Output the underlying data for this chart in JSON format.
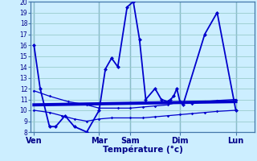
{
  "xlabel": "Température (°c)",
  "background_color": "#cceeff",
  "grid_color": "#99cccc",
  "line_color": "#0000cc",
  "sep_color": "#4477aa",
  "ylim": [
    8,
    20
  ],
  "yticks": [
    8,
    9,
    10,
    11,
    12,
    13,
    14,
    15,
    16,
    17,
    18,
    19,
    20
  ],
  "xlim": [
    0,
    36
  ],
  "day_labels": [
    "Ven",
    "Mar",
    "Sam",
    "Dim",
    "Lun"
  ],
  "day_positions": [
    0.5,
    11,
    16,
    24,
    33
  ],
  "day_sep_positions": [
    0.5,
    11,
    16,
    24,
    33
  ],
  "series1_x": [
    0.5,
    1.5,
    3,
    4,
    5.5,
    7,
    9,
    11,
    12,
    13,
    14,
    15.5,
    16.5,
    17.5,
    18.5,
    20,
    21,
    22,
    22.5,
    23,
    23.5,
    24,
    24.5,
    28,
    30,
    33
  ],
  "series1_y": [
    16,
    12,
    8.5,
    8.5,
    9.5,
    8.5,
    8,
    10,
    13.8,
    14.8,
    14,
    19.5,
    20,
    16.5,
    11,
    12,
    11,
    10.8,
    11,
    11.3,
    12,
    10.8,
    10.5,
    17,
    19,
    10
  ],
  "series2_x": [
    0.5,
    3,
    6,
    9,
    11,
    14,
    16,
    18,
    20,
    22,
    24,
    26,
    28,
    30,
    33
  ],
  "series2_y": [
    11.8,
    11.3,
    10.8,
    10.5,
    10.2,
    10.2,
    10.2,
    10.3,
    10.4,
    10.5,
    10.8,
    10.6,
    10.8,
    10.9,
    11.0
  ],
  "series3_x": [
    0.5,
    3,
    5,
    7,
    9,
    11,
    13,
    16,
    18,
    20,
    22,
    24,
    26,
    28,
    30,
    33
  ],
  "series3_y": [
    10.0,
    9.8,
    9.5,
    9.2,
    9.0,
    9.2,
    9.3,
    9.3,
    9.3,
    9.4,
    9.5,
    9.6,
    9.7,
    9.8,
    9.9,
    10.0
  ],
  "series4_x": [
    0.5,
    33
  ],
  "series4_y": [
    10.5,
    10.8
  ],
  "tick_label_color": "#000088",
  "tick_fontsize": 5.5,
  "xlabel_fontsize": 7.5
}
